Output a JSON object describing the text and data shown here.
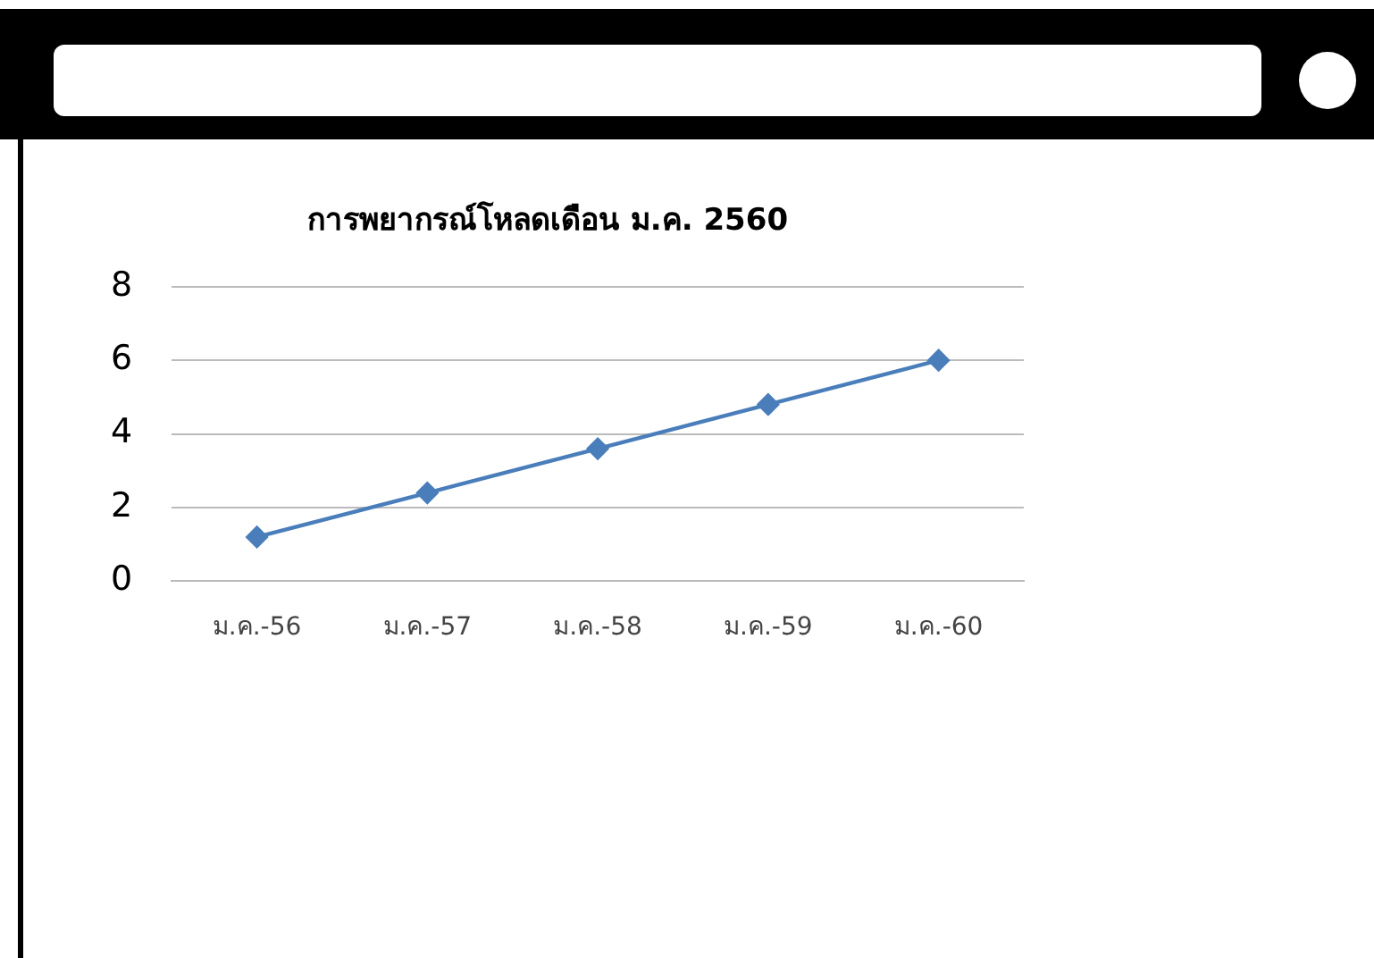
{
  "chart_data": {
    "type": "line",
    "title": "การพยากรณ์โหลดเดือน ม.ค. 2560",
    "categories": [
      "ม.ค.-56",
      "ม.ค.-57",
      "ม.ค.-58",
      "ม.ค.-59",
      "ม.ค.-60"
    ],
    "series": [
      {
        "color": "#4a7ebb",
        "values": [
          1.2,
          2.4,
          3.6,
          4.8,
          6.0
        ]
      }
    ],
    "ylim": [
      0,
      8
    ],
    "yticks": [
      0,
      2,
      4,
      6,
      8
    ],
    "grid": "y",
    "marker": "diamond",
    "line_style": "solid",
    "legend": false
  }
}
